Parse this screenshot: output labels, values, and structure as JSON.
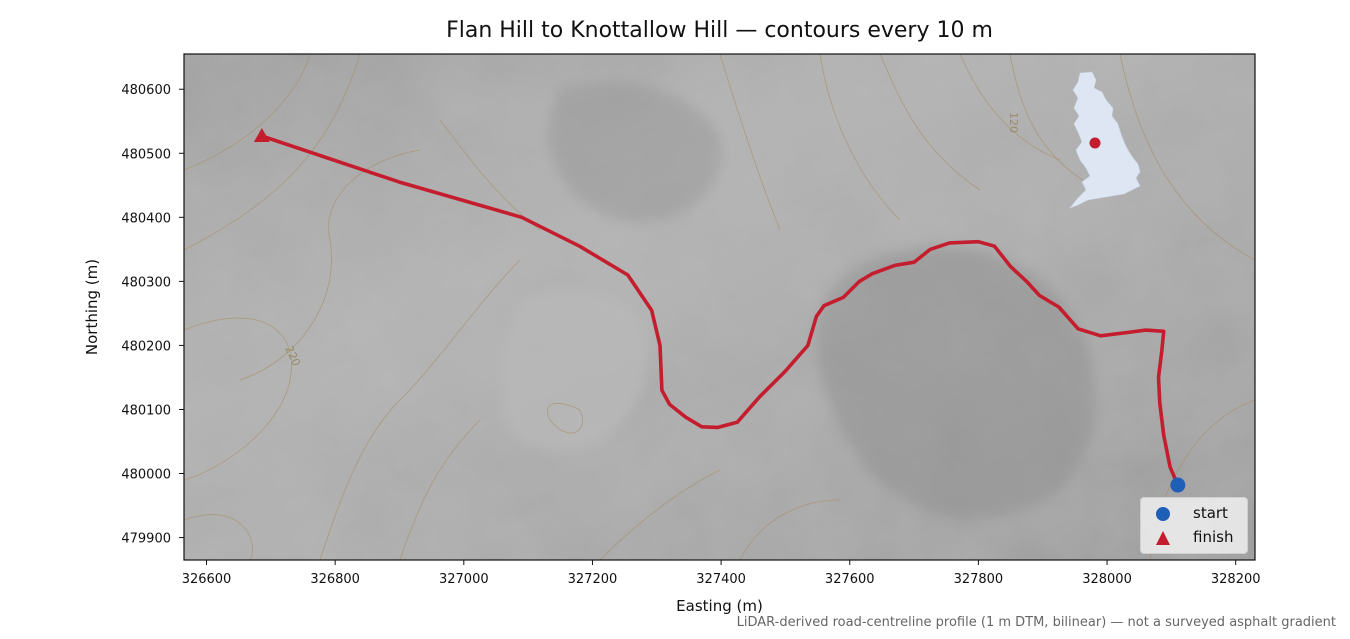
{
  "title": "Flan Hill to Knottallow Hill — contours every 10 m",
  "xlabel": "Easting (m)",
  "ylabel": "Northing (m)",
  "credit": "LiDAR-derived road-centreline profile (1 m DTM, bilinear) — not a surveyed asphalt gradient",
  "contour_labels": [
    "120",
    "220"
  ],
  "legend": {
    "start": "start",
    "finish": "finish"
  },
  "colors": {
    "route": "#c41e2e",
    "start": "#1f5fb8",
    "finish": "#c41e2e",
    "inset_land": "#dde6f2",
    "contour": "#a49066"
  },
  "chart_data": {
    "type": "map",
    "xlim": [
      326565,
      328230
    ],
    "ylim": [
      479865,
      480655
    ],
    "xticks": [
      326600,
      326800,
      327000,
      327200,
      327400,
      327600,
      327800,
      328000,
      328200
    ],
    "yticks": [
      479900,
      480000,
      480100,
      480200,
      480300,
      480400,
      480500,
      480600
    ],
    "xtick_labels": [
      "326600",
      "326800",
      "327000",
      "327200",
      "327400",
      "327600",
      "327800",
      "328000",
      "328200"
    ],
    "ytick_labels": [
      "479900",
      "480000",
      "480100",
      "480200",
      "480300",
      "480400",
      "480500",
      "480600"
    ],
    "route": [
      [
        328110,
        479982
      ],
      [
        328098,
        480010
      ],
      [
        328088,
        480060
      ],
      [
        328082,
        480110
      ],
      [
        328080,
        480150
      ],
      [
        328085,
        480190
      ],
      [
        328088,
        480222
      ],
      [
        328060,
        480224
      ],
      [
        328030,
        480220
      ],
      [
        327990,
        480215
      ],
      [
        327955,
        480226
      ],
      [
        327925,
        480260
      ],
      [
        327895,
        480278
      ],
      [
        327875,
        480300
      ],
      [
        327850,
        480323
      ],
      [
        327825,
        480355
      ],
      [
        327800,
        480362
      ],
      [
        327755,
        480360
      ],
      [
        327725,
        480350
      ],
      [
        327700,
        480330
      ],
      [
        327670,
        480325
      ],
      [
        327635,
        480312
      ],
      [
        327615,
        480300
      ],
      [
        327590,
        480275
      ],
      [
        327560,
        480262
      ],
      [
        327548,
        480245
      ],
      [
        327535,
        480200
      ],
      [
        327500,
        480160
      ],
      [
        327460,
        480120
      ],
      [
        327425,
        480080
      ],
      [
        327395,
        480072
      ],
      [
        327370,
        480073
      ],
      [
        327345,
        480088
      ],
      [
        327320,
        480108
      ],
      [
        327308,
        480130
      ],
      [
        327305,
        480200
      ],
      [
        327292,
        480255
      ],
      [
        327255,
        480310
      ],
      [
        327180,
        480355
      ],
      [
        327090,
        480400
      ],
      [
        326900,
        480455
      ],
      [
        326686,
        480527
      ]
    ],
    "start": [
      328110,
      479982
    ],
    "finish": [
      326686,
      480527
    ],
    "inset_location_marker": "red dot on Great Britain outline"
  }
}
